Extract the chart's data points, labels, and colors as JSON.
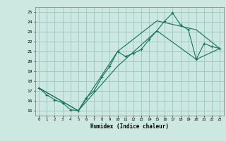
{
  "title": "",
  "xlabel": "Humidex (Indice chaleur)",
  "xlim": [
    -0.5,
    23.5
  ],
  "ylim": [
    14.5,
    25.5
  ],
  "xticks": [
    0,
    1,
    2,
    3,
    4,
    5,
    6,
    7,
    8,
    9,
    10,
    11,
    12,
    13,
    14,
    15,
    16,
    17,
    18,
    19,
    20,
    21,
    22,
    23
  ],
  "yticks": [
    15,
    16,
    17,
    18,
    19,
    20,
    21,
    22,
    23,
    24,
    25
  ],
  "bg_color": "#cce8e0",
  "line_color": "#1a7060",
  "grid_color": "#a0ccc4",
  "line1_x": [
    0,
    1,
    2,
    3,
    4,
    5,
    6,
    7,
    8,
    9,
    10,
    11,
    12,
    13,
    14,
    15,
    16,
    17,
    18,
    19,
    20,
    21,
    22,
    23
  ],
  "line1_y": [
    17.3,
    16.6,
    16.1,
    15.8,
    15.1,
    15.0,
    16.3,
    17.0,
    18.4,
    19.5,
    21.0,
    20.5,
    20.8,
    21.2,
    22.2,
    23.1,
    24.1,
    24.9,
    23.7,
    23.2,
    20.2,
    21.8,
    21.5,
    21.3
  ],
  "line2_x": [
    0,
    5,
    10,
    15,
    20,
    23
  ],
  "line2_y": [
    17.3,
    15.0,
    19.5,
    23.1,
    20.2,
    21.3
  ],
  "line3_x": [
    0,
    5,
    10,
    15,
    20,
    23
  ],
  "line3_y": [
    17.3,
    15.0,
    21.0,
    24.1,
    23.2,
    21.3
  ]
}
